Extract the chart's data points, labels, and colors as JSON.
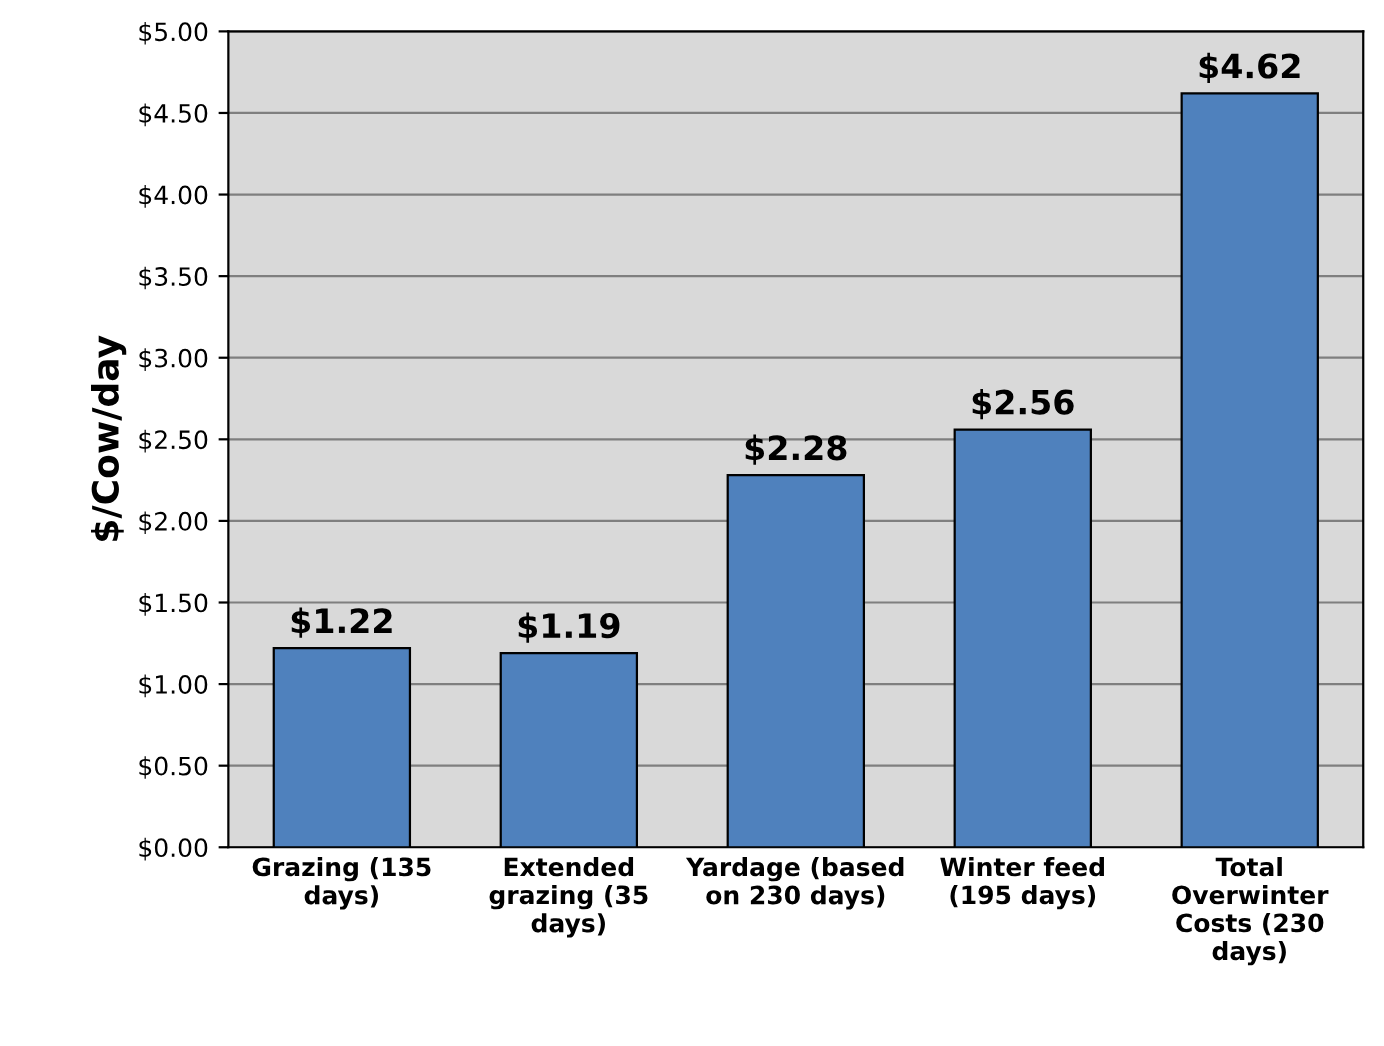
{
  "chart_data": {
    "type": "bar",
    "ylabel": "$/Cow/day",
    "categories": [
      "Grazing (135\ndays)",
      "Extended\ngrazing (35\ndays)",
      "Yardage (based\non 230 days)",
      "Winter feed\n(195 days)",
      "Total\nOverwinter\nCosts (230\ndays)"
    ],
    "values": [
      1.22,
      1.19,
      2.28,
      2.56,
      4.62
    ],
    "value_labels": [
      "$1.22",
      "$1.19",
      "$2.28",
      "$2.56",
      "$4.62"
    ],
    "color": "#4f81bd",
    "ylim": [
      0,
      5
    ],
    "yticks": [
      {
        "value": 0,
        "label": "$0.00"
      },
      {
        "value": 0.5,
        "label": "$0.50"
      },
      {
        "value": 1,
        "label": "$1.00"
      },
      {
        "value": 1.5,
        "label": "$1.50"
      },
      {
        "value": 2,
        "label": "$2.00"
      },
      {
        "value": 2.5,
        "label": "$2.50"
      },
      {
        "value": 3,
        "label": "$3.00"
      },
      {
        "value": 3.5,
        "label": "$3.50"
      },
      {
        "value": 4,
        "label": "$4.00"
      },
      {
        "value": 4.5,
        "label": "$4.50"
      },
      {
        "value": 5,
        "label": "$5.00"
      }
    ],
    "grid": "y",
    "legend": false
  }
}
